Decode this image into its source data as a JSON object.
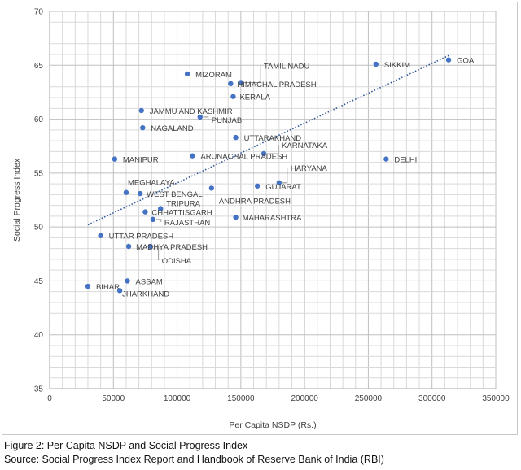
{
  "chart_data": {
    "type": "scatter",
    "title": "",
    "xlabel": "Per Capita NSDP (Rs.)",
    "ylabel": "Social Progress Index",
    "xlim": [
      0,
      350000
    ],
    "ylim": [
      35,
      70
    ],
    "xticks": [
      0,
      50000,
      100000,
      150000,
      200000,
      250000,
      300000,
      350000
    ],
    "yticks": [
      35,
      40,
      45,
      50,
      55,
      60,
      65,
      70
    ],
    "xtick_labels": [
      "0",
      "50000",
      "100000",
      "150000",
      "200000",
      "250000",
      "300000",
      "350000"
    ],
    "ytick_labels": [
      "35",
      "40",
      "45",
      "50",
      "55",
      "60",
      "65",
      "70"
    ],
    "grid": true,
    "point_color": "#4472c4",
    "trendline": {
      "style": "dotted",
      "color": "#2f5597",
      "x": [
        30000,
        313000
      ],
      "y": [
        50.2,
        65.9
      ]
    },
    "points": [
      {
        "label": "GOA",
        "x": 313000,
        "y": 65.5
      },
      {
        "label": "SIKKIM",
        "x": 256000,
        "y": 65.1
      },
      {
        "label": "MIZORAM",
        "x": 108000,
        "y": 64.2
      },
      {
        "label": "TAMIL NADU",
        "x": 150000,
        "y": 63.4
      },
      {
        "label": "HIMACHAL PRADESH",
        "x": 142000,
        "y": 63.3
      },
      {
        "label": "KERALA",
        "x": 144000,
        "y": 62.1
      },
      {
        "label": "JAMMU AND KASHMIR",
        "x": 72000,
        "y": 60.8
      },
      {
        "label": "PUNJAB",
        "x": 118000,
        "y": 60.2
      },
      {
        "label": "NAGALAND",
        "x": 73000,
        "y": 59.2
      },
      {
        "label": "UTTARAKHAND",
        "x": 146000,
        "y": 58.3
      },
      {
        "label": "KARNATAKA",
        "x": 168000,
        "y": 56.8
      },
      {
        "label": "MANIPUR",
        "x": 51000,
        "y": 56.3
      },
      {
        "label": "ARUNACHAL PRADESH",
        "x": 112000,
        "y": 56.6
      },
      {
        "label": "DELHI",
        "x": 264000,
        "y": 56.3
      },
      {
        "label": "HARYANA",
        "x": 180000,
        "y": 54.1
      },
      {
        "label": "GUJARAT",
        "x": 163000,
        "y": 53.8
      },
      {
        "label": "MEGHALAYA",
        "x": 60000,
        "y": 53.2
      },
      {
        "label": "WEST BENGAL",
        "x": 71000,
        "y": 53.1
      },
      {
        "label": "ANDHRA PRADESH",
        "x": 127000,
        "y": 53.6
      },
      {
        "label": "TRIPURA",
        "x": 87000,
        "y": 51.7
      },
      {
        "label": "CHHATTISGARH",
        "x": 75000,
        "y": 51.4
      },
      {
        "label": "MAHARASHTRA",
        "x": 146000,
        "y": 50.9
      },
      {
        "label": "RAJASTHAN",
        "x": 81000,
        "y": 50.7
      },
      {
        "label": "UTTAR PRADESH",
        "x": 40000,
        "y": 49.2
      },
      {
        "label": "MADHYA PRADESH",
        "x": 62000,
        "y": 48.2
      },
      {
        "label": "ODISHA",
        "x": 79000,
        "y": 48.2
      },
      {
        "label": "ASSAM",
        "x": 61000,
        "y": 45.0
      },
      {
        "label": "BIHAR",
        "x": 30000,
        "y": 44.5
      },
      {
        "label": "JHARKHAND",
        "x": 55000,
        "y": 44.1
      }
    ]
  },
  "caption": {
    "figure": "Figure 2: Per Capita NSDP and Social Progress Index",
    "source": "Source: Social Progress Index Report and Handbook of Reserve Bank of India (RBI)"
  }
}
